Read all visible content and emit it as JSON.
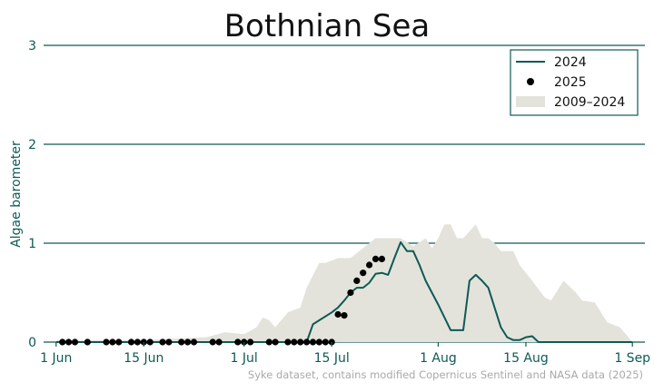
{
  "chart_data": {
    "type": "line",
    "title": "Bothnian Sea",
    "xlabel": "",
    "ylabel": "Algae barometer",
    "ylim": [
      0,
      3
    ],
    "yticks": [
      0,
      1,
      2,
      3
    ],
    "xlim": [
      "2025-05-30",
      "2025-09-03"
    ],
    "xticks": [
      {
        "date": "2025-06-01",
        "label": "1 Jun"
      },
      {
        "date": "2025-06-15",
        "label": "15 Jun"
      },
      {
        "date": "2025-07-01",
        "label": "1 Jul"
      },
      {
        "date": "2025-07-15",
        "label": "15 Jul"
      },
      {
        "date": "2025-08-01",
        "label": "1 Aug"
      },
      {
        "date": "2025-08-15",
        "label": "15 Aug"
      },
      {
        "date": "2025-09-01",
        "label": "1 Sep"
      }
    ],
    "grid": "horizontal",
    "legend_position": "top-right",
    "source": "Syke dataset, contains modified Copernicus Sentinel and NASA data (2025)",
    "colors": {
      "line_2024": "#0e5a55",
      "dots_2025": "#000000",
      "band": "#e3e3dc",
      "grid": "#0e5a55",
      "text": "#0e5a55"
    },
    "series": [
      {
        "name": "2009–2024",
        "kind": "area",
        "x": [
          "2025-06-01",
          "2025-06-15",
          "2025-06-25",
          "2025-06-28",
          "2025-07-01",
          "2025-07-03",
          "2025-07-04",
          "2025-07-05",
          "2025-07-06",
          "2025-07-08",
          "2025-07-10",
          "2025-07-11",
          "2025-07-13",
          "2025-07-14",
          "2025-07-16",
          "2025-07-18",
          "2025-07-20",
          "2025-07-22",
          "2025-07-24",
          "2025-07-26",
          "2025-07-28",
          "2025-07-30",
          "2025-07-31",
          "2025-08-01",
          "2025-08-02",
          "2025-08-03",
          "2025-08-04",
          "2025-08-05",
          "2025-08-07",
          "2025-08-08",
          "2025-08-09",
          "2025-08-10",
          "2025-08-11",
          "2025-08-13",
          "2025-08-14",
          "2025-08-16",
          "2025-08-18",
          "2025-08-19",
          "2025-08-21",
          "2025-08-23",
          "2025-08-24",
          "2025-08-26",
          "2025-08-28",
          "2025-08-30",
          "2025-09-01"
        ],
        "low": [
          0,
          0,
          0,
          0,
          0,
          0,
          0,
          0,
          0,
          0,
          0,
          0,
          0,
          0,
          0,
          0,
          0,
          0,
          0,
          0,
          0,
          0,
          0,
          0,
          0,
          0,
          0,
          0,
          0,
          0,
          0,
          0,
          0,
          0,
          0,
          0,
          0,
          0,
          0,
          0,
          0,
          0,
          0,
          0,
          0
        ],
        "high": [
          0.02,
          0.02,
          0.05,
          0.1,
          0.08,
          0.15,
          0.25,
          0.22,
          0.15,
          0.3,
          0.35,
          0.55,
          0.8,
          0.8,
          0.85,
          0.85,
          0.95,
          1.05,
          1.05,
          1.05,
          0.97,
          1.05,
          0.95,
          1.05,
          1.19,
          1.19,
          1.05,
          1.05,
          1.19,
          1.05,
          1.05,
          1.0,
          0.92,
          0.92,
          0.78,
          0.62,
          0.45,
          0.42,
          0.62,
          0.5,
          0.42,
          0.4,
          0.2,
          0.15,
          0.0
        ]
      },
      {
        "name": "2024",
        "kind": "line",
        "x": [
          "2025-06-01",
          "2025-07-11",
          "2025-07-12",
          "2025-07-13",
          "2025-07-15",
          "2025-07-16",
          "2025-07-17",
          "2025-07-18",
          "2025-07-19",
          "2025-07-20",
          "2025-07-21",
          "2025-07-22",
          "2025-07-23",
          "2025-07-24",
          "2025-07-25",
          "2025-07-26",
          "2025-07-27",
          "2025-07-28",
          "2025-07-29",
          "2025-07-30",
          "2025-07-31",
          "2025-08-01",
          "2025-08-02",
          "2025-08-03",
          "2025-08-04",
          "2025-08-05",
          "2025-08-06",
          "2025-08-07",
          "2025-08-08",
          "2025-08-09",
          "2025-08-10",
          "2025-08-11",
          "2025-08-12",
          "2025-08-13",
          "2025-08-14",
          "2025-08-15",
          "2025-08-16",
          "2025-08-17",
          "2025-08-18",
          "2025-08-20",
          "2025-09-01"
        ],
        "values": [
          0.0,
          0.0,
          0.18,
          0.22,
          0.3,
          0.35,
          0.42,
          0.5,
          0.55,
          0.55,
          0.6,
          0.69,
          0.7,
          0.68,
          0.85,
          1.01,
          0.92,
          0.92,
          0.78,
          0.62,
          0.5,
          0.38,
          0.25,
          0.12,
          0.12,
          0.12,
          0.62,
          0.68,
          0.62,
          0.55,
          0.35,
          0.15,
          0.05,
          0.02,
          0.02,
          0.05,
          0.06,
          0.0,
          0.0,
          0.0,
          0.0
        ]
      },
      {
        "name": "2025",
        "kind": "scatter",
        "x": [
          "2025-06-02",
          "2025-06-03",
          "2025-06-04",
          "2025-06-06",
          "2025-06-09",
          "2025-06-10",
          "2025-06-11",
          "2025-06-13",
          "2025-06-14",
          "2025-06-15",
          "2025-06-16",
          "2025-06-18",
          "2025-06-19",
          "2025-06-21",
          "2025-06-22",
          "2025-06-23",
          "2025-06-26",
          "2025-06-27",
          "2025-06-30",
          "2025-07-01",
          "2025-07-02",
          "2025-07-05",
          "2025-07-06",
          "2025-07-08",
          "2025-07-09",
          "2025-07-10",
          "2025-07-11",
          "2025-07-12",
          "2025-07-13",
          "2025-07-14",
          "2025-07-15",
          "2025-07-16",
          "2025-07-17",
          "2025-07-18",
          "2025-07-19",
          "2025-07-20",
          "2025-07-21",
          "2025-07-22",
          "2025-07-23"
        ],
        "values": [
          0,
          0,
          0,
          0,
          0,
          0,
          0,
          0,
          0,
          0,
          0,
          0,
          0,
          0,
          0,
          0,
          0,
          0,
          0,
          0,
          0,
          0,
          0,
          0,
          0,
          0,
          0,
          0,
          0,
          0,
          0,
          0.28,
          0.27,
          0.5,
          0.62,
          0.7,
          0.78,
          0.84,
          0.84
        ]
      }
    ]
  }
}
